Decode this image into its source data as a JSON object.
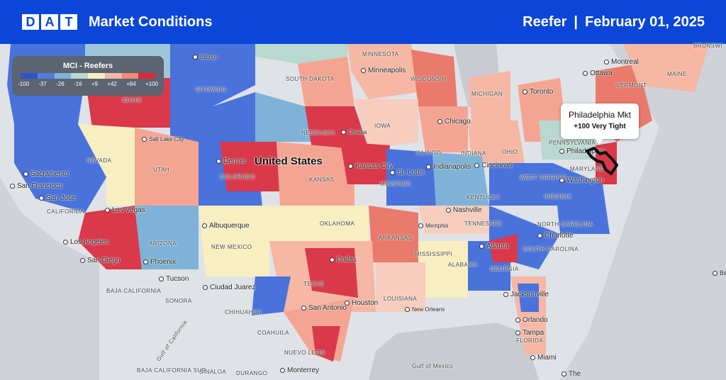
{
  "header": {
    "logo_letters": [
      "D",
      "A",
      "T"
    ],
    "title": "Market Conditions",
    "equipment": "Reefer",
    "separator": "|",
    "date": "February 01, 2025"
  },
  "legend": {
    "title": "MCI - Reefers",
    "ticks": [
      "-100",
      "-37",
      "-26",
      "-16",
      "+9",
      "+42",
      "+84",
      "+100"
    ],
    "colors": [
      "#2e54c8",
      "#4f7ee0",
      "#7fb2d8",
      "#b8d8d0",
      "#f7efc0",
      "#f6b7a4",
      "#ee8a78",
      "#d9283a"
    ]
  },
  "callout": {
    "title": "Philadelphia Mkt",
    "subtitle": "+100 Very Tight",
    "icon": "philadelphia-market-outline-icon"
  },
  "map": {
    "country_label": "United States",
    "states": [
      "MINNESOTA",
      "SOUTH DAKOTA",
      "WISCONSIN",
      "MICHIGAN",
      "VERMONT",
      "MAINE",
      "IDAHO",
      "WYOMING",
      "NEBRASKA",
      "IOWA",
      "NEVADA",
      "UTAH",
      "COLORADO",
      "KANSAS",
      "ILLINOIS",
      "INDIANA",
      "OHIO",
      "PENNSYLVANIA",
      "MARYLAND",
      "WEST VIRGINIA",
      "VIRGINIA",
      "KENTUCKY",
      "MISSOURI",
      "CALIFORNIA",
      "ARIZONA",
      "NEW MEXICO",
      "OKLAHOMA",
      "ARKANSAS",
      "TENNESSEE",
      "NORTH CAROLINA",
      "SOUTH CAROLINA",
      "MISSISSIPPI",
      "ALABAMA",
      "GEORGIA",
      "TEXAS",
      "LOUISIANA",
      "FLORIDA",
      "BAJA CALIFORNIA",
      "SONORA",
      "CHIHUAHUA",
      "COAHUILA",
      "NUEVO LEON",
      "BAJA CALIFORNIA SUR",
      "SINALOA",
      "DURANGO"
    ],
    "cities": [
      "Billings",
      "Minneapolis",
      "Ottawa",
      "Montreal",
      "Toronto",
      "Chicago",
      "Omaha",
      "Salt Lake City",
      "Denver",
      "Kansas City",
      "St. Louis",
      "Indianapolis",
      "Cincinnati",
      "Philadelphia",
      "Washington",
      "Sacramento",
      "San Francisco",
      "San Jose",
      "Las Vegas",
      "Nashville",
      "Memphis",
      "Charlotte",
      "Albuquerque",
      "Los Angeles",
      "San Diego",
      "Phoenix",
      "Tucson",
      "Atlanta",
      "Dallas",
      "Ciudad Juarez",
      "Jacksonville",
      "Houston",
      "San Antonio",
      "New Orleans",
      "Orlando",
      "Tampa",
      "Miami",
      "Monterrey"
    ],
    "water": [
      "Gulf of California",
      "Gulf of Mexico"
    ],
    "edge_labels": [
      "BRUNSWI",
      "Berr",
      "The"
    ]
  }
}
